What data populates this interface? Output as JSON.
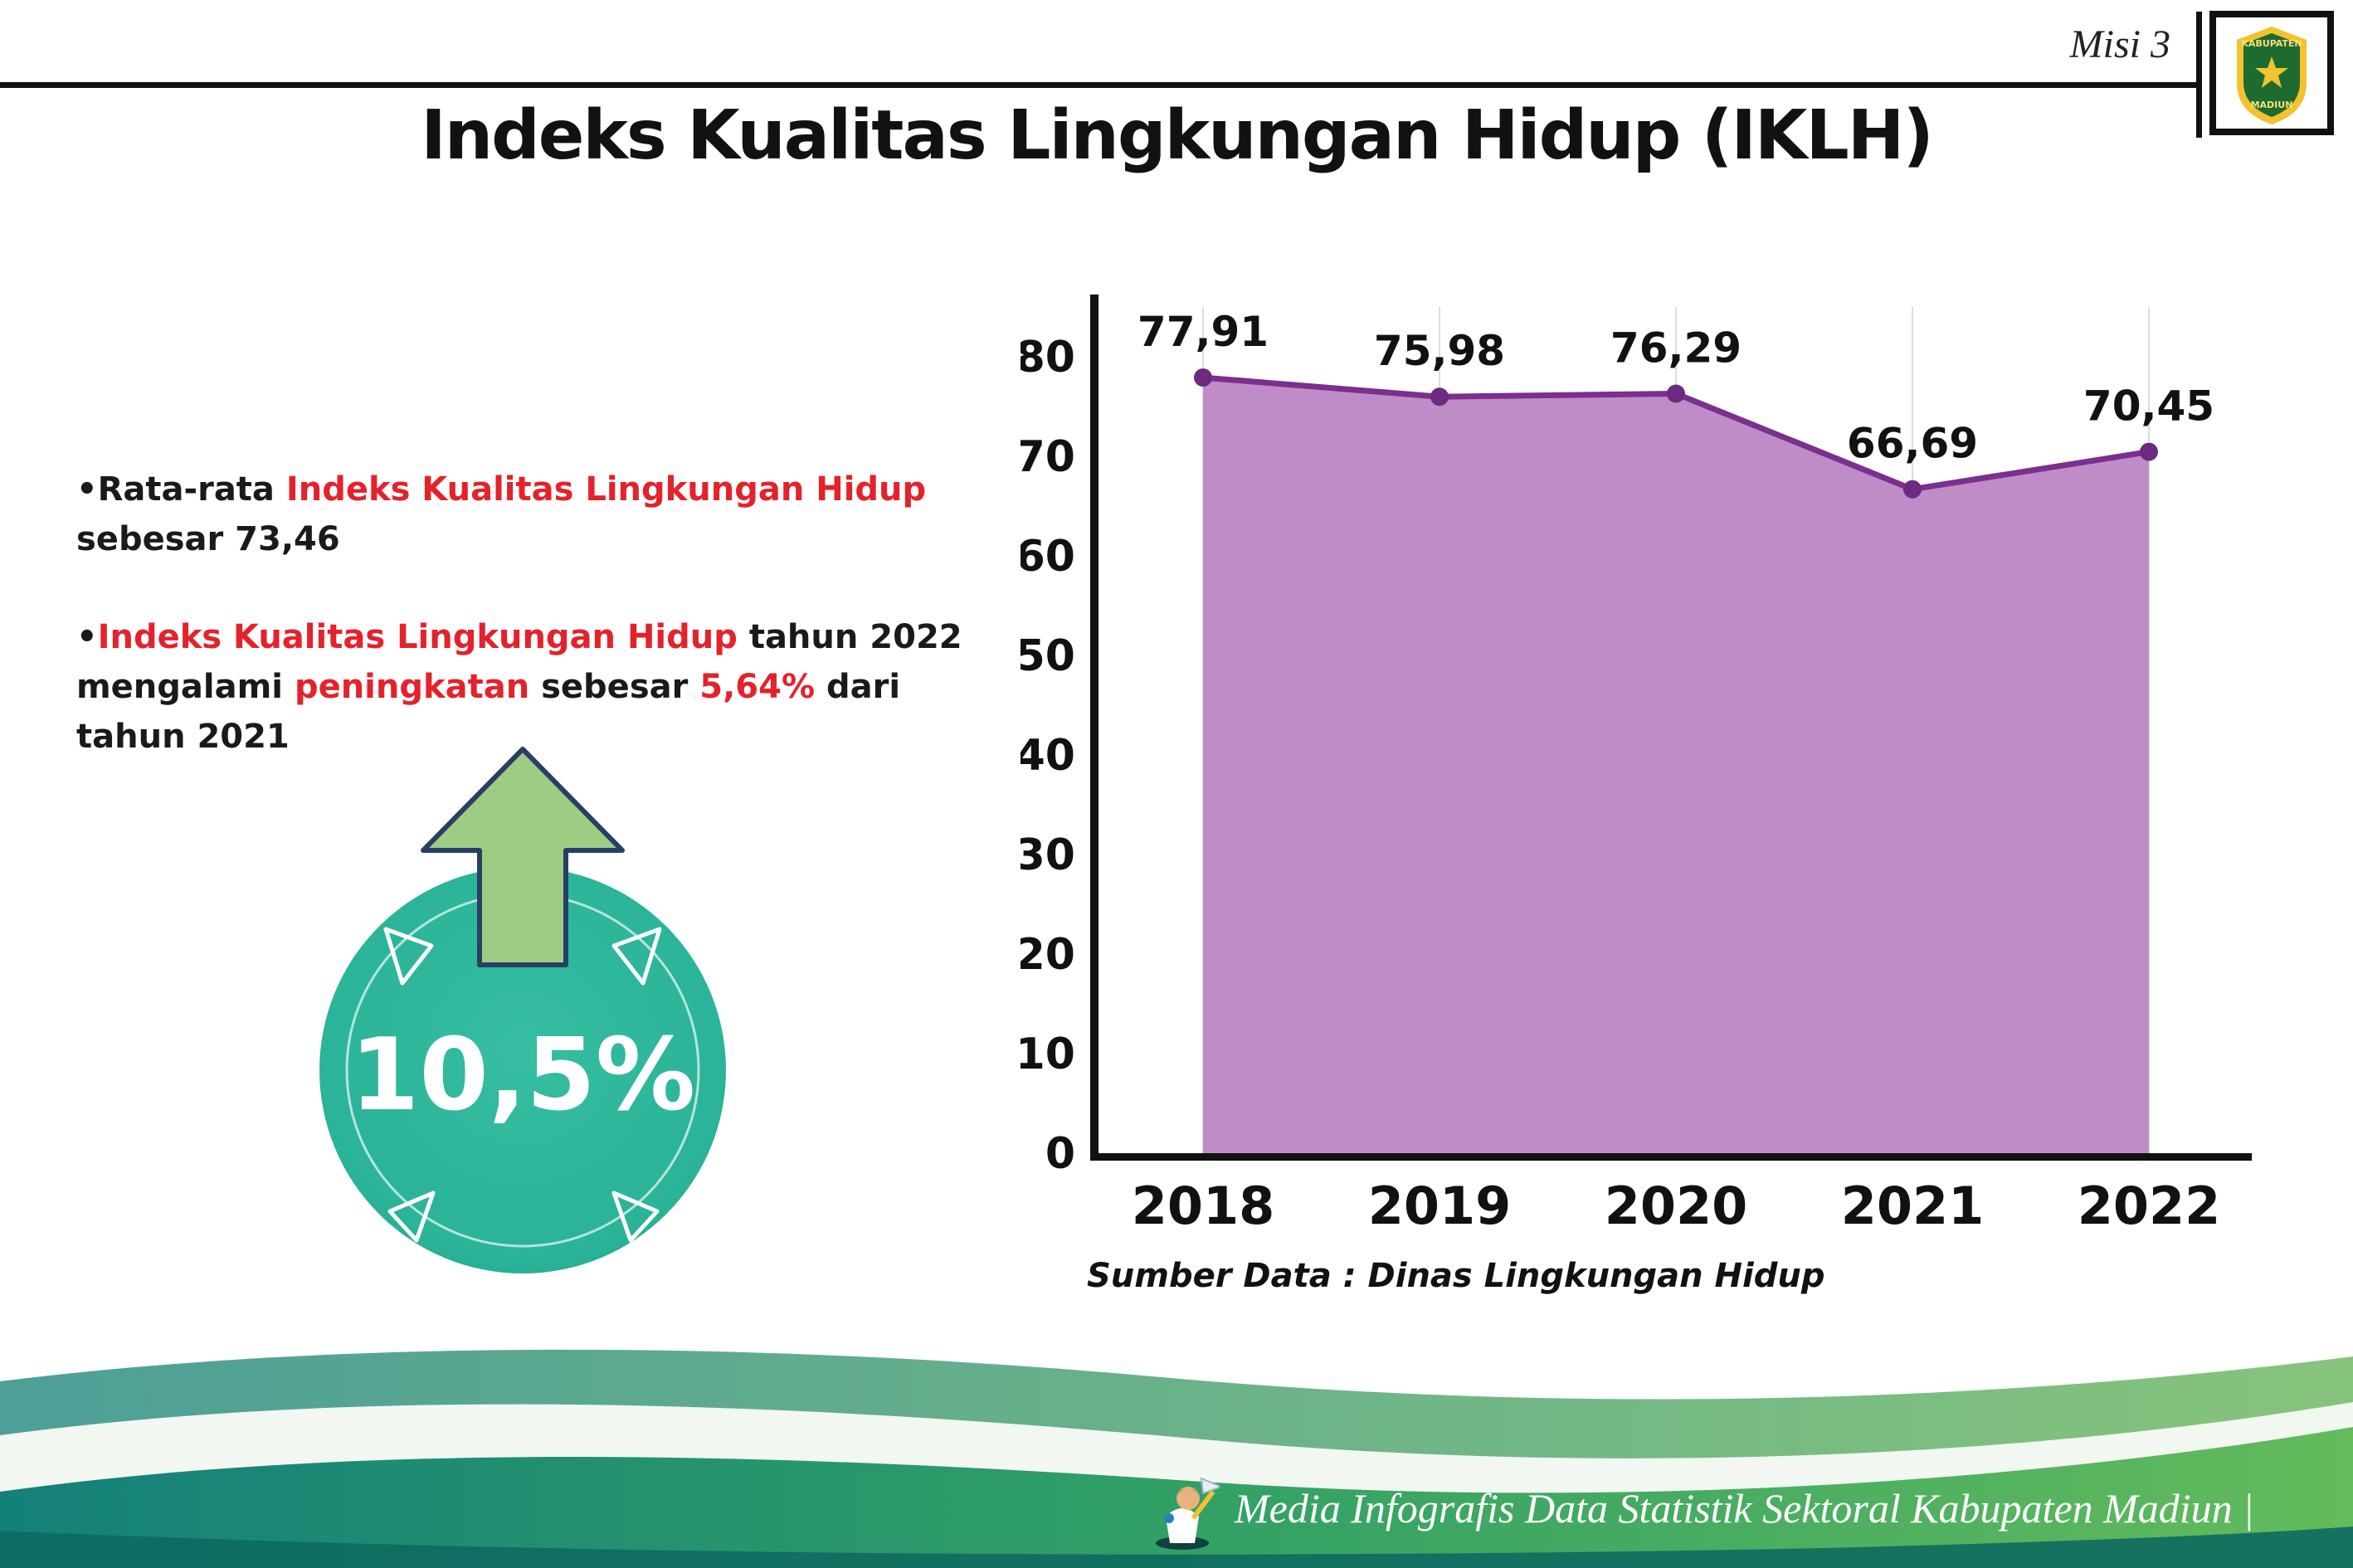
{
  "header": {
    "misi": "Misi 3",
    "title": "Indeks Kualitas Lingkungan Hidup (IKLH)",
    "logo": {
      "line1": "KABUPATEN",
      "line2": "MADIUN"
    }
  },
  "bullets": [
    {
      "segments": [
        {
          "text": "Rata-rata ",
          "color": "black"
        },
        {
          "text": "Indeks Kualitas Lingkungan Hidup",
          "color": "red"
        },
        {
          "text": " sebesar 73,46",
          "color": "black"
        }
      ]
    },
    {
      "segments": [
        {
          "text": "Indeks Kualitas Lingkungan Hidup",
          "color": "red"
        },
        {
          "text": " tahun 2022 mengalami ",
          "color": "black"
        },
        {
          "text": "peningkatan",
          "color": "red"
        },
        {
          "text": " sebesar ",
          "color": "black"
        },
        {
          "text": "5,64%",
          "color": "red"
        },
        {
          "text": " dari tahun 2021",
          "color": "black"
        }
      ]
    }
  ],
  "badge": {
    "value": "10,5%"
  },
  "chart_data": {
    "type": "area",
    "title": "Indeks Kualitas Lingkungan Hidup (IKLH)",
    "categories": [
      "2018",
      "2019",
      "2020",
      "2021",
      "2022"
    ],
    "values": [
      77.91,
      75.98,
      76.29,
      66.69,
      70.45
    ],
    "labels": [
      "77,91",
      "75,98",
      "76,29",
      "66,69",
      "70,45"
    ],
    "ylim": [
      0,
      80
    ],
    "yticks": [
      0,
      10,
      20,
      30,
      40,
      50,
      60,
      70,
      80
    ],
    "grid": "vertical",
    "grid_color": "#dcdcdc",
    "fill_color": "#bf8cc7",
    "line_color": "#7b2f8e",
    "point_color": "#6d2a80",
    "source": "Sumber Data : Dinas Lingkungan Hidup"
  },
  "footer": {
    "text": "Media Infografis Data Statistik Sektoral Kabupaten Madiun |"
  }
}
